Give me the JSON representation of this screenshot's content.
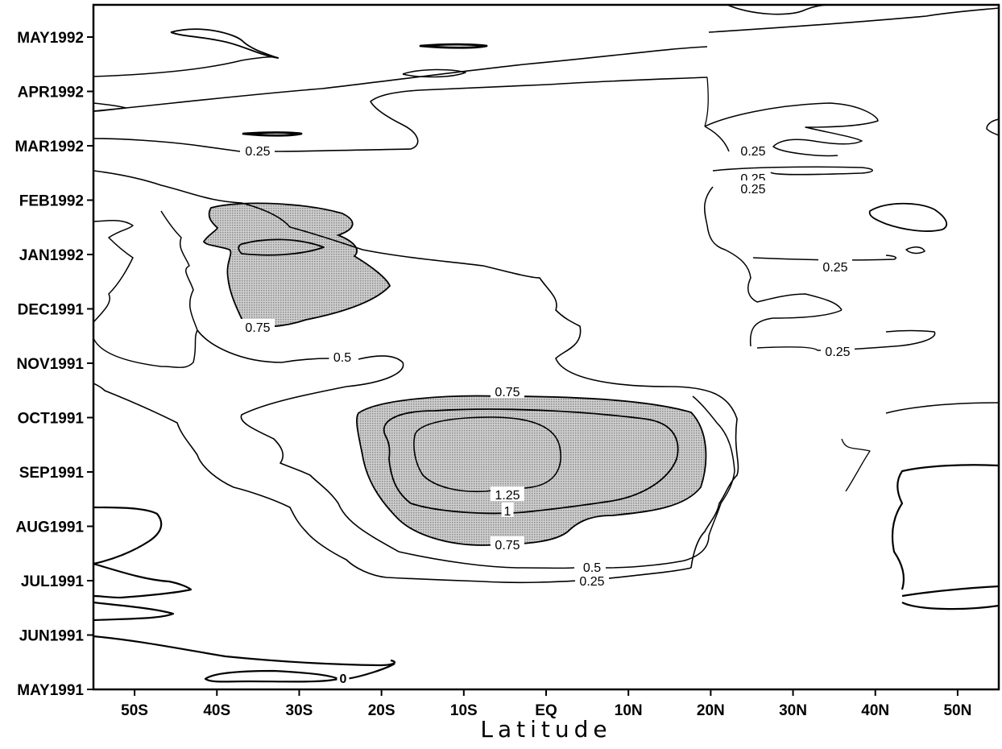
{
  "chart_data": {
    "type": "contour",
    "xlabel": "Latitude",
    "ylabel": "",
    "x_ticks": [
      "50S",
      "40S",
      "30S",
      "20S",
      "10S",
      "EQ",
      "10N",
      "20N",
      "30N",
      "40N",
      "50N"
    ],
    "x_tick_values": [
      -50,
      -40,
      -30,
      -20,
      -10,
      0,
      10,
      20,
      30,
      40,
      50
    ],
    "xlim": [
      -55,
      55
    ],
    "y_ticks": [
      "MAY1992",
      "APR1992",
      "MAR1992",
      "FEB1992",
      "JAN1992",
      "DEC1991",
      "NOV1991",
      "OCT1991",
      "SEP1991",
      "AUG1991",
      "JUL1991",
      "JUN1991",
      "MAY1991"
    ],
    "y_tick_values": [
      "1992-05",
      "1992-04",
      "1992-03",
      "1992-02",
      "1992-01",
      "1991-12",
      "1991-11",
      "1991-10",
      "1991-09",
      "1991-08",
      "1991-07",
      "1991-06",
      "1991-05"
    ],
    "ylim": [
      "1991-05",
      "1992-05"
    ],
    "contour_levels": [
      0,
      0.25,
      0.5,
      0.75,
      1,
      1.25
    ],
    "shading": "values >= 0.75 shaded",
    "contour_labels": [
      {
        "text": "0.25",
        "level": 0.25,
        "lat": -31,
        "time": "1992-03"
      },
      {
        "text": "0.25",
        "level": 0.25,
        "lat": 29,
        "time": "1992-03"
      },
      {
        "text": "0.25",
        "level": 0.25,
        "lat": 29,
        "time": "1992-02"
      },
      {
        "text": "0.25",
        "level": 0.25,
        "lat": 29,
        "time": "1992-02"
      },
      {
        "text": "0.25",
        "level": 0.25,
        "lat": 39,
        "time": "1992-01"
      },
      {
        "text": "0.75",
        "level": 0.75,
        "lat": -35,
        "time": "1991-12"
      },
      {
        "text": "0.5",
        "level": 0.5,
        "lat": -21,
        "time": "1991-11"
      },
      {
        "text": "0.25",
        "level": 0.25,
        "lat": 39,
        "time": "1991-11"
      },
      {
        "text": "0.75",
        "level": 0.75,
        "lat": -6,
        "time": "1991-10"
      },
      {
        "text": "1.25",
        "level": 1.25,
        "lat": -6,
        "time": "1991-09"
      },
      {
        "text": "1",
        "level": 1,
        "lat": -6,
        "time": "1991-08"
      },
      {
        "text": "0.75",
        "level": 0.75,
        "lat": -6,
        "time": "1991-08"
      },
      {
        "text": "0.5",
        "level": 0.5,
        "lat": 5,
        "time": "1991-07"
      },
      {
        "text": "0.25",
        "level": 0.25,
        "lat": 5,
        "time": "1991-07"
      },
      {
        "text": "0",
        "level": 0,
        "lat": -26,
        "time": "1991-05"
      }
    ],
    "grid": false,
    "legend": "none"
  }
}
